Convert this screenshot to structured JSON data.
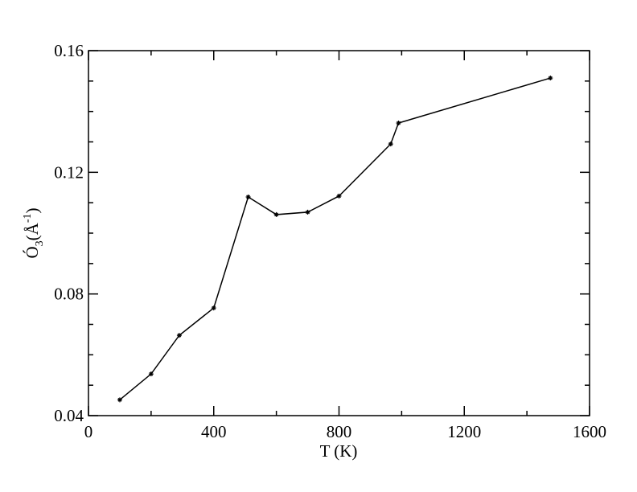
{
  "chart_data": {
    "type": "line",
    "xlabel": "T (K)",
    "ylabel": {
      "main": "Ó",
      "sub": "3",
      "mid": "(Å",
      "sup": "-1",
      "end": ")"
    },
    "x": [
      100,
      200,
      290,
      400,
      510,
      600,
      700,
      800,
      965,
      990,
      1475
    ],
    "series": [
      {
        "color": "#000000",
        "values": [
          0.0452,
          0.0537,
          0.0664,
          0.0754,
          0.1119,
          0.1061,
          0.1069,
          0.1122,
          0.1293,
          0.1362,
          0.151
        ]
      }
    ],
    "xlim": [
      0,
      1600
    ],
    "xticks": [
      0,
      400,
      800,
      1200,
      1600
    ],
    "ylim": [
      0.04,
      0.16
    ],
    "yticks": [
      0.04,
      0.08,
      0.12,
      0.16
    ],
    "minor_divisions": {
      "x": 2,
      "y": 4
    },
    "grid": false,
    "mirror_ticks": true
  }
}
